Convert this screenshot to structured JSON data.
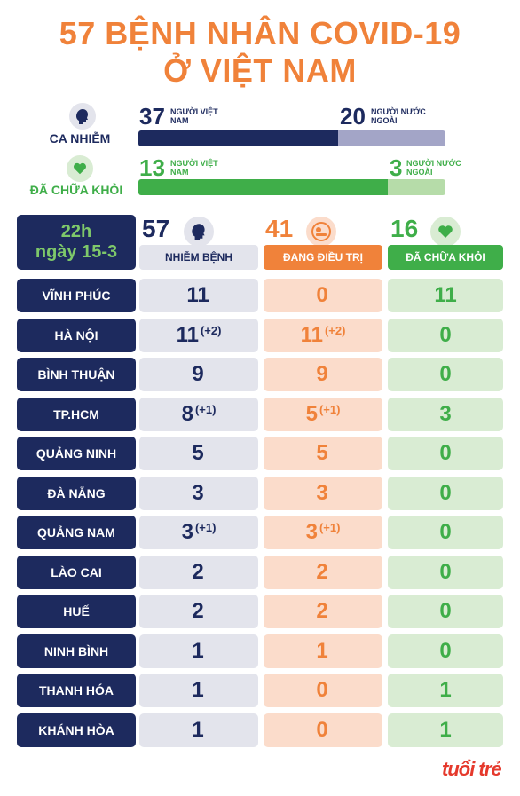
{
  "title": {
    "line1": "57 BỆNH NHÂN COVID-19",
    "line2": "Ở VIỆT NAM"
  },
  "summary": {
    "infected": {
      "label": "CA NHIỄM",
      "vietnamese": 37,
      "vietnamese_label": "NGƯỜI VIỆT NAM",
      "foreign": 20,
      "foreign_label": "NGƯỜI NƯỚC NGOÀI",
      "color_a": "#1d2a5e",
      "color_b": "#a3a5c7"
    },
    "recovered": {
      "label": "ĐÃ CHỮA KHỎI",
      "vietnamese": 13,
      "vietnamese_label": "NGƯỜI VIỆT NAM",
      "foreign": 3,
      "foreign_label": "NGƯỜI NƯỚC NGOÀI",
      "color_a": "#3fae49",
      "color_b": "#b6dca9"
    }
  },
  "table_header": {
    "date_line1": "22h",
    "date_line2": "ngày 15-3",
    "infected_total": 57,
    "infected_label": "NHIỄM BỆNH",
    "treating_total": 41,
    "treating_label": "ĐANG ĐIỀU TRỊ",
    "recovered_total": 16,
    "recovered_label": "ĐÃ CHỮA KHỎI"
  },
  "chart_data": {
    "type": "table",
    "columns": [
      "NHIỄM BỆNH",
      "ĐANG ĐIỀU TRỊ",
      "ĐÃ CHỮA KHỎI"
    ],
    "rows": [
      {
        "province": "VĨNH PHÚC",
        "infected": 11,
        "infected_inc": "",
        "treating": 0,
        "treating_inc": "",
        "recovered": 11
      },
      {
        "province": "HÀ NỘI",
        "infected": 11,
        "infected_inc": "(+2)",
        "treating": 11,
        "treating_inc": "(+2)",
        "recovered": 0
      },
      {
        "province": "BÌNH THUẬN",
        "infected": 9,
        "infected_inc": "",
        "treating": 9,
        "treating_inc": "",
        "recovered": 0
      },
      {
        "province": "TP.HCM",
        "infected": 8,
        "infected_inc": "(+1)",
        "treating": 5,
        "treating_inc": "(+1)",
        "recovered": 3
      },
      {
        "province": "QUẢNG NINH",
        "infected": 5,
        "infected_inc": "",
        "treating": 5,
        "treating_inc": "",
        "recovered": 0
      },
      {
        "province": "ĐÀ NẴNG",
        "infected": 3,
        "infected_inc": "",
        "treating": 3,
        "treating_inc": "",
        "recovered": 0
      },
      {
        "province": "QUẢNG NAM",
        "infected": 3,
        "infected_inc": "(+1)",
        "treating": 3,
        "treating_inc": "(+1)",
        "recovered": 0
      },
      {
        "province": "LÀO CAI",
        "infected": 2,
        "infected_inc": "",
        "treating": 2,
        "treating_inc": "",
        "recovered": 0
      },
      {
        "province": "HUẾ",
        "infected": 2,
        "infected_inc": "",
        "treating": 2,
        "treating_inc": "",
        "recovered": 0
      },
      {
        "province": "NINH BÌNH",
        "infected": 1,
        "infected_inc": "",
        "treating": 1,
        "treating_inc": "",
        "recovered": 0
      },
      {
        "province": "THANH HÓA",
        "infected": 1,
        "infected_inc": "",
        "treating": 0,
        "treating_inc": "",
        "recovered": 1
      },
      {
        "province": "KHÁNH HÒA",
        "infected": 1,
        "infected_inc": "",
        "treating": 0,
        "treating_inc": "",
        "recovered": 1
      }
    ]
  },
  "icons": {
    "infected": "person-head-icon",
    "treating": "patient-bed-icon",
    "recovered": "heart-icon"
  },
  "colors": {
    "accent": "#f0823a",
    "navy": "#1d2a5e",
    "green": "#3fae49"
  },
  "brand": {
    "logo": "tuổi trẻ"
  }
}
